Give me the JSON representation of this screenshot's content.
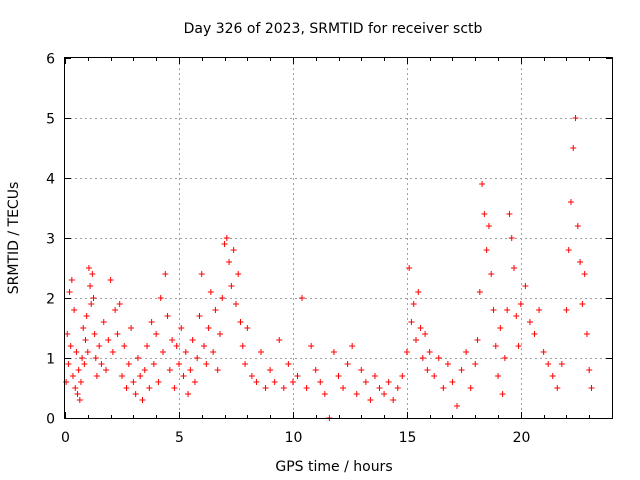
{
  "chart_data": {
    "type": "scatter",
    "title": "Day 326 of 2023, SRMTID for receiver sctb",
    "xlabel": "GPS time / hours",
    "ylabel": "SRMTID / TECUs",
    "xlim": [
      0,
      24
    ],
    "ylim": [
      0,
      6
    ],
    "xticks": [
      0,
      5,
      10,
      15,
      20
    ],
    "yticks": [
      0,
      1,
      2,
      3,
      4,
      5,
      6
    ],
    "xtick_labels": [
      "0",
      "5",
      "10",
      "15",
      "20"
    ],
    "ytick_labels": [
      "0",
      "1",
      "2",
      "3",
      "4",
      "5",
      "6"
    ],
    "grid": true,
    "marker": "plus",
    "color": "#ff0000",
    "series": [
      {
        "name": "SRMTID",
        "x": [
          0.05,
          0.1,
          0.15,
          0.2,
          0.25,
          0.3,
          0.35,
          0.4,
          0.45,
          0.5,
          0.55,
          0.6,
          0.65,
          0.7,
          0.75,
          0.8,
          0.85,
          0.9,
          0.95,
          1.0,
          1.05,
          1.1,
          1.15,
          1.2,
          1.25,
          1.3,
          1.35,
          1.4,
          1.5,
          1.6,
          1.7,
          1.8,
          1.9,
          2.0,
          2.1,
          2.2,
          2.3,
          2.4,
          2.5,
          2.6,
          2.7,
          2.8,
          2.9,
          3.0,
          3.1,
          3.2,
          3.3,
          3.4,
          3.5,
          3.6,
          3.7,
          3.8,
          3.9,
          4.0,
          4.1,
          4.2,
          4.3,
          4.4,
          4.5,
          4.6,
          4.7,
          4.8,
          4.9,
          5.0,
          5.1,
          5.2,
          5.3,
          5.4,
          5.5,
          5.6,
          5.7,
          5.8,
          5.9,
          6.0,
          6.1,
          6.2,
          6.3,
          6.4,
          6.5,
          6.6,
          6.7,
          6.8,
          6.9,
          7.0,
          7.1,
          7.2,
          7.3,
          7.4,
          7.5,
          7.6,
          7.7,
          7.8,
          7.9,
          8.0,
          8.2,
          8.4,
          8.6,
          8.8,
          9.0,
          9.2,
          9.4,
          9.6,
          9.8,
          10.0,
          10.2,
          10.4,
          10.6,
          10.8,
          11.0,
          11.2,
          11.4,
          11.6,
          11.8,
          12.0,
          12.2,
          12.4,
          12.6,
          12.8,
          13.0,
          13.2,
          13.4,
          13.6,
          13.8,
          14.0,
          14.2,
          14.4,
          14.6,
          14.8,
          15.0,
          15.1,
          15.2,
          15.3,
          15.4,
          15.5,
          15.6,
          15.7,
          15.8,
          15.9,
          16.0,
          16.2,
          16.4,
          16.6,
          16.8,
          17.0,
          17.2,
          17.4,
          17.6,
          17.8,
          18.0,
          18.1,
          18.2,
          18.3,
          18.4,
          18.5,
          18.6,
          18.7,
          18.8,
          18.9,
          19.0,
          19.1,
          19.2,
          19.3,
          19.4,
          19.5,
          19.6,
          19.7,
          19.8,
          19.9,
          20.0,
          20.2,
          20.4,
          20.6,
          20.8,
          21.0,
          21.2,
          21.4,
          21.6,
          21.8,
          22.0,
          22.1,
          22.2,
          22.3,
          22.4,
          22.5,
          22.6,
          22.7,
          22.8,
          22.9,
          23.0,
          23.1
        ],
        "y": [
          0.6,
          1.4,
          0.9,
          2.1,
          1.2,
          2.3,
          0.7,
          1.8,
          0.5,
          1.1,
          0.4,
          0.8,
          0.3,
          0.6,
          1.0,
          1.5,
          0.9,
          1.3,
          1.7,
          1.1,
          2.5,
          2.2,
          1.9,
          2.4,
          2.0,
          1.4,
          1.0,
          0.7,
          1.2,
          0.9,
          1.6,
          0.8,
          1.3,
          2.3,
          1.1,
          1.8,
          1.4,
          1.9,
          0.7,
          1.2,
          0.5,
          0.9,
          1.5,
          0.6,
          0.4,
          1.0,
          0.7,
          0.3,
          0.8,
          1.2,
          0.5,
          1.6,
          0.9,
          1.4,
          0.6,
          2.0,
          1.1,
          2.4,
          1.7,
          0.8,
          1.3,
          0.5,
          1.2,
          0.9,
          1.5,
          0.7,
          1.1,
          0.4,
          0.8,
          1.3,
          0.6,
          1.0,
          1.7,
          2.4,
          1.2,
          0.9,
          1.5,
          2.1,
          1.1,
          1.8,
          0.8,
          1.4,
          2.0,
          2.9,
          3.0,
          2.6,
          2.2,
          2.8,
          1.9,
          2.4,
          1.6,
          1.2,
          0.9,
          1.5,
          0.7,
          0.6,
          1.1,
          0.5,
          0.8,
          0.6,
          1.3,
          0.5,
          0.9,
          0.6,
          0.7,
          2.0,
          0.5,
          1.2,
          0.8,
          0.6,
          0.4,
          0.0,
          1.1,
          0.7,
          0.5,
          0.9,
          1.2,
          0.4,
          0.8,
          0.6,
          0.3,
          0.7,
          0.5,
          0.4,
          0.6,
          0.3,
          0.5,
          0.7,
          1.1,
          2.5,
          1.6,
          1.9,
          1.3,
          2.1,
          1.5,
          1.0,
          1.4,
          0.8,
          1.1,
          0.7,
          1.0,
          0.5,
          0.9,
          0.6,
          0.2,
          0.8,
          1.1,
          0.5,
          0.9,
          1.3,
          2.1,
          3.9,
          3.4,
          2.8,
          3.2,
          2.4,
          1.8,
          1.2,
          0.7,
          1.5,
          0.4,
          1.0,
          1.8,
          3.4,
          3.0,
          2.5,
          1.7,
          1.2,
          1.9,
          2.2,
          1.6,
          1.4,
          1.8,
          1.1,
          0.9,
          0.7,
          0.5,
          0.9,
          1.8,
          2.8,
          3.6,
          4.5,
          5.0,
          3.2,
          2.6,
          1.9,
          2.4,
          1.4,
          0.8,
          0.5
        ]
      }
    ]
  }
}
